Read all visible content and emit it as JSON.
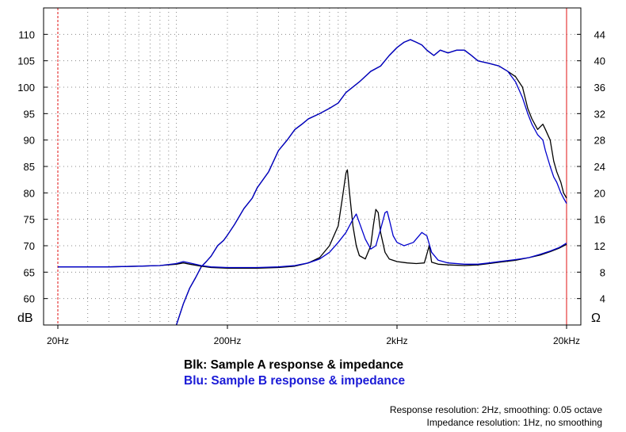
{
  "chart_data": {
    "type": "line",
    "x_axis": {
      "scale": "log",
      "unit": "Hz",
      "range": [
        20,
        20000
      ],
      "tick_labels": [
        "20Hz",
        "200Hz",
        "2kHz",
        "20kHz"
      ],
      "tick_values": [
        20,
        200,
        2000,
        20000
      ]
    },
    "y_left": {
      "unit_label": "dB",
      "range": [
        55,
        115
      ],
      "tick_values": [
        60,
        65,
        70,
        75,
        80,
        85,
        90,
        95,
        100,
        105,
        110
      ],
      "tick_labels": [
        "60",
        "65",
        "70",
        "75",
        "80",
        "85",
        "90",
        "95",
        "100",
        "105",
        "110"
      ]
    },
    "y_right": {
      "unit_label": "Ω",
      "range": [
        0,
        48
      ],
      "tick_values": [
        4,
        8,
        12,
        16,
        20,
        24,
        28,
        32,
        36,
        40,
        44
      ],
      "tick_labels": [
        "4",
        "8",
        "12",
        "16",
        "20",
        "24",
        "28",
        "32",
        "36",
        "40",
        "44"
      ]
    },
    "grid": "dotted",
    "markers_hz": [
      20,
      20000
    ],
    "series": [
      {
        "color": "#000000",
        "axis": "left",
        "points": [
          [
            100,
            55
          ],
          [
            110,
            59
          ],
          [
            120,
            62
          ],
          [
            130,
            64
          ],
          [
            140,
            66
          ],
          [
            150,
            67
          ],
          [
            160,
            68
          ],
          [
            175,
            70
          ],
          [
            190,
            71
          ],
          [
            200,
            72
          ],
          [
            220,
            74
          ],
          [
            250,
            77
          ],
          [
            280,
            79
          ],
          [
            300,
            81
          ],
          [
            350,
            84
          ],
          [
            400,
            88
          ],
          [
            450,
            90
          ],
          [
            500,
            92
          ],
          [
            550,
            93
          ],
          [
            600,
            94
          ],
          [
            700,
            95
          ],
          [
            800,
            96
          ],
          [
            900,
            97
          ],
          [
            1000,
            99
          ],
          [
            1200,
            101
          ],
          [
            1400,
            103
          ],
          [
            1600,
            104
          ],
          [
            1800,
            106
          ],
          [
            2000,
            107.5
          ],
          [
            2200,
            108.5
          ],
          [
            2400,
            109
          ],
          [
            2600,
            108.5
          ],
          [
            2800,
            108
          ],
          [
            3000,
            107
          ],
          [
            3300,
            106
          ],
          [
            3600,
            107
          ],
          [
            4000,
            106.5
          ],
          [
            4500,
            107
          ],
          [
            5000,
            107
          ],
          [
            5500,
            106
          ],
          [
            6000,
            105
          ],
          [
            7000,
            104.5
          ],
          [
            8000,
            104
          ],
          [
            9000,
            103
          ],
          [
            10000,
            102
          ],
          [
            11000,
            100
          ],
          [
            11800,
            96
          ],
          [
            12500,
            94
          ],
          [
            13500,
            92
          ],
          [
            14500,
            93
          ],
          [
            15000,
            92
          ],
          [
            16000,
            90
          ],
          [
            16800,
            86
          ],
          [
            17500,
            84
          ],
          [
            18500,
            82
          ],
          [
            19200,
            80
          ],
          [
            20000,
            79
          ]
        ]
      },
      {
        "color": "#0000cc",
        "axis": "left",
        "points": [
          [
            100,
            55
          ],
          [
            110,
            59
          ],
          [
            120,
            62
          ],
          [
            130,
            64
          ],
          [
            140,
            66
          ],
          [
            150,
            67
          ],
          [
            160,
            68
          ],
          [
            175,
            70
          ],
          [
            190,
            71
          ],
          [
            200,
            72
          ],
          [
            220,
            74
          ],
          [
            250,
            77
          ],
          [
            280,
            79
          ],
          [
            300,
            81
          ],
          [
            350,
            84
          ],
          [
            400,
            88
          ],
          [
            450,
            90
          ],
          [
            500,
            92
          ],
          [
            550,
            93
          ],
          [
            600,
            94
          ],
          [
            700,
            95
          ],
          [
            800,
            96
          ],
          [
            900,
            97
          ],
          [
            1000,
            99
          ],
          [
            1200,
            101
          ],
          [
            1400,
            103
          ],
          [
            1600,
            104
          ],
          [
            1800,
            106
          ],
          [
            2000,
            107.5
          ],
          [
            2200,
            108.5
          ],
          [
            2400,
            109
          ],
          [
            2600,
            108.5
          ],
          [
            2800,
            108
          ],
          [
            3000,
            107
          ],
          [
            3300,
            106
          ],
          [
            3600,
            107
          ],
          [
            4000,
            106.5
          ],
          [
            4500,
            107
          ],
          [
            5000,
            107
          ],
          [
            5500,
            106
          ],
          [
            6000,
            105
          ],
          [
            7000,
            104.5
          ],
          [
            8000,
            104
          ],
          [
            9000,
            103
          ],
          [
            10000,
            101
          ],
          [
            11000,
            98
          ],
          [
            11800,
            95
          ],
          [
            12500,
            93
          ],
          [
            13500,
            91
          ],
          [
            14500,
            90
          ],
          [
            15000,
            88
          ],
          [
            16000,
            85
          ],
          [
            16800,
            83
          ],
          [
            17500,
            82
          ],
          [
            18500,
            80
          ],
          [
            19200,
            79
          ],
          [
            20000,
            78
          ]
        ]
      },
      {
        "color": "#000000",
        "axis": "right",
        "points": [
          [
            20,
            8.8
          ],
          [
            40,
            8.8
          ],
          [
            60,
            8.9
          ],
          [
            80,
            9.0
          ],
          [
            100,
            9.2
          ],
          [
            110,
            9.4
          ],
          [
            120,
            9.2
          ],
          [
            140,
            8.9
          ],
          [
            160,
            8.7
          ],
          [
            200,
            8.6
          ],
          [
            300,
            8.6
          ],
          [
            400,
            8.7
          ],
          [
            500,
            8.9
          ],
          [
            600,
            9.4
          ],
          [
            700,
            10.2
          ],
          [
            800,
            12
          ],
          [
            900,
            15
          ],
          [
            950,
            19
          ],
          [
            1000,
            23
          ],
          [
            1020,
            23.5
          ],
          [
            1050,
            20
          ],
          [
            1100,
            15
          ],
          [
            1150,
            12
          ],
          [
            1200,
            10.5
          ],
          [
            1300,
            10
          ],
          [
            1400,
            12
          ],
          [
            1450,
            15
          ],
          [
            1500,
            17.5
          ],
          [
            1550,
            17
          ],
          [
            1600,
            14
          ],
          [
            1700,
            11
          ],
          [
            1800,
            10
          ],
          [
            2000,
            9.6
          ],
          [
            2300,
            9.4
          ],
          [
            2600,
            9.3
          ],
          [
            2900,
            9.4
          ],
          [
            3100,
            12
          ],
          [
            3200,
            9.5
          ],
          [
            3500,
            9.2
          ],
          [
            4000,
            9.1
          ],
          [
            5000,
            9.0
          ],
          [
            6000,
            9.1
          ],
          [
            7000,
            9.3
          ],
          [
            8000,
            9.5
          ],
          [
            10000,
            9.8
          ],
          [
            12000,
            10.2
          ],
          [
            14000,
            10.6
          ],
          [
            16000,
            11.1
          ],
          [
            18000,
            11.6
          ],
          [
            20000,
            12.2
          ]
        ]
      },
      {
        "color": "#0000cc",
        "axis": "right",
        "points": [
          [
            20,
            8.8
          ],
          [
            40,
            8.8
          ],
          [
            60,
            8.9
          ],
          [
            80,
            9.0
          ],
          [
            100,
            9.3
          ],
          [
            110,
            9.6
          ],
          [
            120,
            9.4
          ],
          [
            140,
            9.0
          ],
          [
            160,
            8.8
          ],
          [
            200,
            8.7
          ],
          [
            300,
            8.7
          ],
          [
            400,
            8.8
          ],
          [
            500,
            9.0
          ],
          [
            600,
            9.4
          ],
          [
            700,
            10.0
          ],
          [
            800,
            11
          ],
          [
            900,
            12.5
          ],
          [
            1000,
            14
          ],
          [
            1100,
            16
          ],
          [
            1150,
            16.8
          ],
          [
            1200,
            15.5
          ],
          [
            1300,
            13
          ],
          [
            1400,
            11.5
          ],
          [
            1500,
            12
          ],
          [
            1600,
            14.5
          ],
          [
            1700,
            17
          ],
          [
            1750,
            17.2
          ],
          [
            1800,
            16
          ],
          [
            1900,
            13.5
          ],
          [
            2000,
            12.5
          ],
          [
            2200,
            12
          ],
          [
            2500,
            12.5
          ],
          [
            2800,
            14
          ],
          [
            3000,
            13.5
          ],
          [
            3200,
            11
          ],
          [
            3500,
            9.8
          ],
          [
            4000,
            9.4
          ],
          [
            5000,
            9.2
          ],
          [
            6000,
            9.2
          ],
          [
            7000,
            9.4
          ],
          [
            8000,
            9.6
          ],
          [
            10000,
            9.9
          ],
          [
            12000,
            10.2
          ],
          [
            14000,
            10.7
          ],
          [
            16000,
            11.2
          ],
          [
            18000,
            11.7
          ],
          [
            20000,
            12.4
          ]
        ]
      }
    ]
  },
  "legend": {
    "black": "Blk: Sample A response & impedance",
    "blue": "Blu: Sample B response & impedance"
  },
  "notes": {
    "response": "Response resolution: 2Hz, smoothing: 0.05 octave",
    "impedance": "Impedance resolution: 1Hz, no smoothing"
  }
}
